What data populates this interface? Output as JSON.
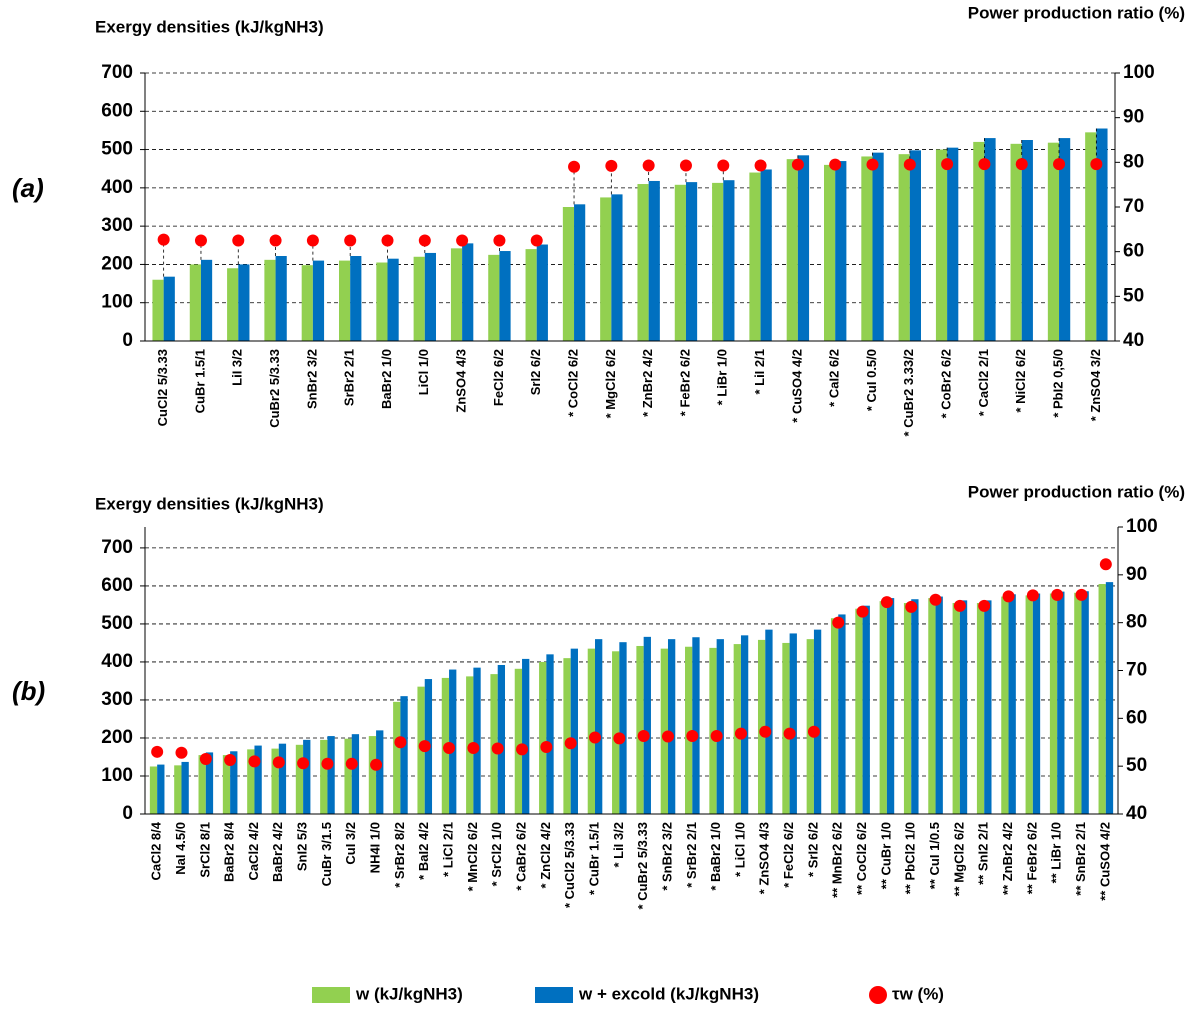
{
  "chart_data": [
    {
      "type": "bar",
      "label": "(a)",
      "ylabel": "Exergy densities (kJ/kgNH3)",
      "y2label": "Power production ratio (%)",
      "categories": [
        "CuCl2 5/3.33",
        "CuBr 1.5/1",
        "LiI 3/2",
        "CuBr2 5/3.33",
        "SnBr2 3/2",
        "SrBr2 2/1",
        "BaBr2 1/0",
        "LiCl 1/0",
        "ZnSO4 4/3",
        "FeCl2 6/2",
        "SrI2 6/2",
        "* CoCl2 6/2",
        "* MgCl2 6/2",
        "* ZnBr2 4/2",
        "* FeBr2 6/2",
        "* LiBr 1/0",
        "* LiI 2/1",
        "* CuSO4 4/2",
        "* CaI2 6/2",
        "* CuI 0.5/0",
        "* CuBr2 3.33/2",
        "* CoBr2 6/2",
        "* CaCl2 2/1",
        "* NiCl2 6/2",
        "* PbI2 0,5/0",
        "* ZnSO4 3/2"
      ],
      "series": [
        {
          "color": "#92d050",
          "values": [
            160,
            200,
            190,
            212,
            198,
            210,
            205,
            220,
            242,
            225,
            240,
            350,
            375,
            410,
            408,
            413,
            440,
            475,
            460,
            482,
            488,
            500,
            520,
            515,
            518,
            545
          ]
        },
        {
          "color": "#0070c0",
          "values": [
            168,
            212,
            200,
            222,
            210,
            222,
            215,
            230,
            255,
            235,
            252,
            357,
            383,
            418,
            415,
            420,
            448,
            485,
            470,
            492,
            498,
            505,
            530,
            525,
            530,
            555
          ]
        },
        {
          "type": "scatter",
          "axis": "y2",
          "color": "#ff0000",
          "values": [
            62.7,
            62.5,
            62.5,
            62.5,
            62.5,
            62.5,
            62.5,
            62.5,
            62.5,
            62.5,
            62.5,
            79,
            79.2,
            79.3,
            79.3,
            79.3,
            79.3,
            79.5,
            79.5,
            79.5,
            79.5,
            79.6,
            79.6,
            79.6,
            79.6,
            79.6
          ]
        }
      ],
      "ylim": [
        0,
        700
      ],
      "yticks": [
        0,
        100,
        200,
        300,
        400,
        500,
        600,
        700
      ],
      "y2lim": [
        40,
        100
      ],
      "y2ticks": [
        40,
        50,
        60,
        70,
        80,
        90,
        100
      ],
      "grid": true,
      "drop_lines": true
    },
    {
      "type": "bar",
      "label": "(b)",
      "ylabel": "Exergy densities (kJ/kgNH3)",
      "y2label": "Power production ratio (%)",
      "categories": [
        "CaCl2 8/4",
        "NaI 4.5/0",
        "SrCl2 8/1",
        "BaBr2 8/4",
        "CaCl2 4/2",
        "BaBr2 4/2",
        "SnI2 5/3",
        "CuBr 3/1.5",
        "CuI 3/2",
        "NH4I 1/0",
        "* SrBr2 8/2",
        "* BaI2 4/2",
        "* LiCl 2/1",
        "* MnCl2 6/2",
        "* SrCl2 1/0",
        "* CaBr2 6/2",
        "* ZnCl2 4/2",
        "* CuCl2 5/3.33",
        "* CuBr 1.5/1",
        "* LiI 3/2",
        "* CuBr2 5/3.33",
        "* SnBr2 3/2",
        "* SrBr2 2/1",
        "* BaBr2 1/0",
        "* LiCl 1/0",
        "* ZnSO4 4/3",
        "* FeCl2 6/2",
        "* SrI2 6/2",
        "** MnBr2 6/2",
        "** CoCl2 6/2",
        "** CuBr 1/0",
        "** PbCl2 1/0",
        "** CuI 1/0.5",
        "** MgCl2 6/2",
        "** SnI2 2/1",
        "** ZnBr2 4/2",
        "** FeBr2 6/2",
        "** LiBr 1/0",
        "** SnBr2 2/1",
        "** CuSO4 4/2"
      ],
      "series": [
        {
          "name": "w (kJ/kgNH3)",
          "color": "#92d050",
          "values": [
            125,
            128,
            155,
            155,
            170,
            172,
            182,
            195,
            198,
            205,
            295,
            335,
            358,
            362,
            368,
            382,
            400,
            410,
            435,
            428,
            442,
            435,
            440,
            437,
            447,
            458,
            450,
            460,
            515,
            540,
            560,
            555,
            568,
            555,
            555,
            572,
            575,
            580,
            582,
            605
          ]
        },
        {
          "name": "w + excold (kJ/kgNH3)",
          "color": "#0070c0",
          "values": [
            130,
            137,
            162,
            165,
            180,
            185,
            195,
            205,
            210,
            220,
            310,
            355,
            380,
            385,
            392,
            408,
            420,
            435,
            460,
            452,
            466,
            460,
            465,
            460,
            470,
            485,
            475,
            485,
            525,
            548,
            568,
            565,
            572,
            562,
            562,
            578,
            580,
            585,
            586,
            610
          ]
        },
        {
          "name": "τw (%)",
          "type": "scatter",
          "axis": "y2",
          "color": "#ff0000",
          "values": [
            53,
            52.8,
            51.5,
            51.3,
            51,
            50.8,
            50.6,
            50.5,
            50.5,
            50.3,
            55,
            54.2,
            53.8,
            53.8,
            53.7,
            53.5,
            54,
            54.8,
            56,
            55.8,
            56.3,
            56.2,
            56.3,
            56.3,
            56.8,
            57.2,
            56.8,
            57.2,
            80,
            82.3,
            84.3,
            83.3,
            84.8,
            83.5,
            83.5,
            85.5,
            85.7,
            85.8,
            85.8,
            92.2
          ]
        }
      ],
      "ylim": [
        0,
        755
      ],
      "yticks": [
        0,
        100,
        200,
        300,
        400,
        500,
        600,
        700
      ],
      "y2lim": [
        40,
        100
      ],
      "y2ticks": [
        40,
        50,
        60,
        70,
        80,
        90,
        100
      ],
      "grid": true,
      "drop_lines": false
    }
  ]
}
